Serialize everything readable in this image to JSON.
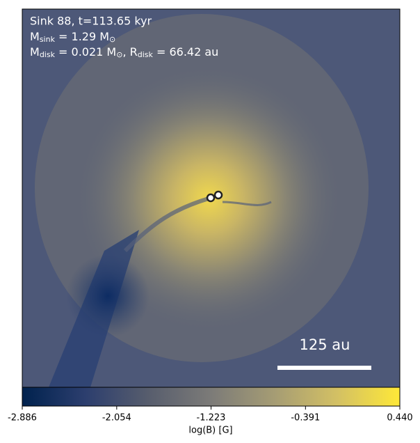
{
  "title": "Sink 88, t=113.65 kyr",
  "mass_sink": [
    {
      "t": "M"
    },
    {
      "sub": "sink"
    },
    {
      "t": " = 1.29 M"
    },
    {
      "sub": "⊙"
    }
  ],
  "disk": [
    {
      "t": "M"
    },
    {
      "sub": "disk"
    },
    {
      "t": " = 0.021 M"
    },
    {
      "sub": "⊙"
    },
    {
      "t": ", R"
    },
    {
      "sub": "disk"
    },
    {
      "t": " = 66.42 au"
    }
  ],
  "scale_bar": "125 au",
  "colorbar": {
    "label": "log(B) [G]",
    "lim": [
      -2.886,
      0.44
    ],
    "ticks": [
      -2.886,
      -2.054,
      -1.223,
      -0.391,
      {
        "value": 0.44,
        "label": "0.440"
      }
    ],
    "colors": [
      "#00224e",
      "#2c3e6e",
      "#575d6d",
      "#7c7b78",
      "#a59c74",
      "#d3c064",
      "#fee838"
    ]
  }
}
